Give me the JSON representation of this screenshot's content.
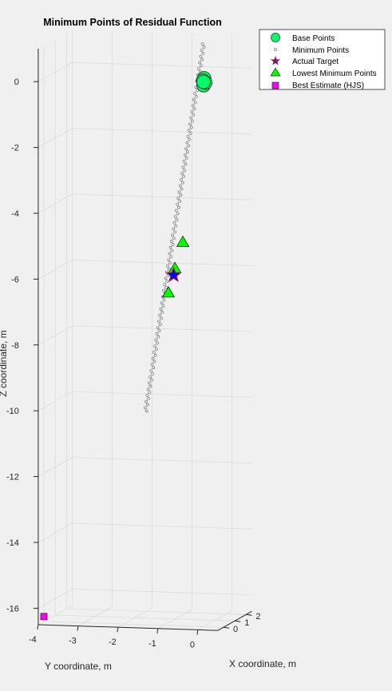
{
  "chart_data": {
    "type": "scatter",
    "title": "Minimum Points of Residual Function",
    "xlabel": "X coordinate, m",
    "ylabel": "Y coordinate, m",
    "zlabel": "Z coordinate, m",
    "xlim": [
      -0.5,
      2.5
    ],
    "ylim": [
      -4,
      0.5
    ],
    "zlim": [
      -16.5,
      1
    ],
    "x_ticks": [
      "0",
      "1",
      "2"
    ],
    "y_ticks": [
      "-4",
      "-3",
      "-2",
      "-1",
      "0"
    ],
    "z_ticks": [
      "0",
      "-2",
      "-4",
      "-6",
      "-8",
      "-10",
      "-12",
      "-14",
      "-16"
    ],
    "grid": true,
    "legend_position": "top-right",
    "legend": [
      "Base Points",
      "Minimum Points",
      "Actual Target",
      "Lowest Minimum Points",
      "Best Estimate (HJS)"
    ],
    "colors": {
      "base": "#00ff66",
      "minimum": "#7f7f7f",
      "target_fill": "#0000ff",
      "target_edge": "#a2142f",
      "lowest": "#00ff00",
      "best": "#ff00ff"
    },
    "series": [
      {
        "name": "Base Points",
        "marker": "circle",
        "points": [
          [
            0.05,
            0.0,
            0.15
          ],
          [
            0.0,
            0.0,
            -0.05
          ],
          [
            -0.05,
            0.0,
            0.1
          ],
          [
            0.15,
            0.0,
            0.0
          ],
          [
            0.0,
            0.0,
            0.05
          ]
        ]
      },
      {
        "name": "Minimum Points",
        "marker": "dot",
        "curve": {
          "from": [
            0.0,
            0.0,
            1.2
          ],
          "to": [
            0.0,
            -1.45,
            -10.0
          ],
          "count": 120
        }
      },
      {
        "name": "Actual Target",
        "marker": "star",
        "points": [
          [
            0.0,
            -0.75,
            -5.85
          ]
        ]
      },
      {
        "name": "Lowest Minimum Points",
        "marker": "triangle",
        "points": [
          [
            0.0,
            -0.52,
            -4.85
          ],
          [
            0.0,
            -0.72,
            -5.65
          ],
          [
            0.0,
            -0.88,
            -6.4
          ]
        ]
      },
      {
        "name": "Best Estimate (HJS)",
        "marker": "square",
        "points": [
          [
            0.0,
            -4.0,
            -16.35
          ]
        ]
      }
    ]
  }
}
